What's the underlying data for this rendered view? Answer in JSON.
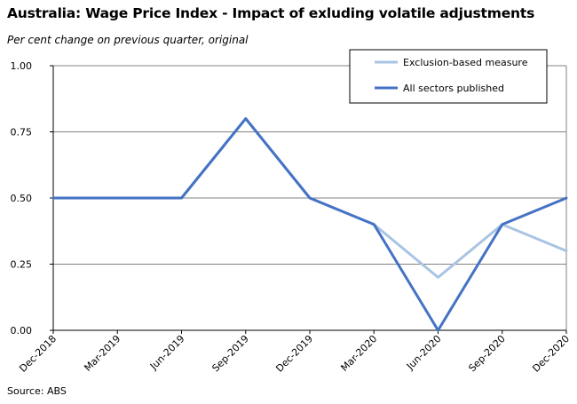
{
  "chart_data": {
    "type": "line",
    "title": "Australia: Wage Price Index - Impact of exluding volatile adjustments",
    "subtitle": "Per cent change on previous quarter, original",
    "source": "Source: ABS",
    "categories": [
      "Dec-2018",
      "Mar-2019",
      "Jun-2019",
      "Sep-2019",
      "Dec-2019",
      "Mar-2020",
      "Jun-2020",
      "Sep-2020",
      "Dec-2020"
    ],
    "ylim": [
      0,
      1
    ],
    "yticks": [
      "0.00",
      "0.25",
      "0.50",
      "0.75",
      "1.00"
    ],
    "ytick_values": [
      0,
      0.25,
      0.5,
      0.75,
      1.0
    ],
    "grid": true,
    "legend_position": "top-right",
    "series": [
      {
        "name": "Exclusion-based measure",
        "color": "#a9c4e3",
        "values": [
          0.5,
          0.5,
          0.5,
          0.8,
          0.5,
          0.4,
          0.2,
          0.4,
          0.3
        ]
      },
      {
        "name": "All sectors published",
        "color": "#4472c4",
        "values": [
          0.5,
          0.5,
          0.5,
          0.8,
          0.5,
          0.4,
          0.0,
          0.4,
          0.5
        ]
      }
    ]
  }
}
